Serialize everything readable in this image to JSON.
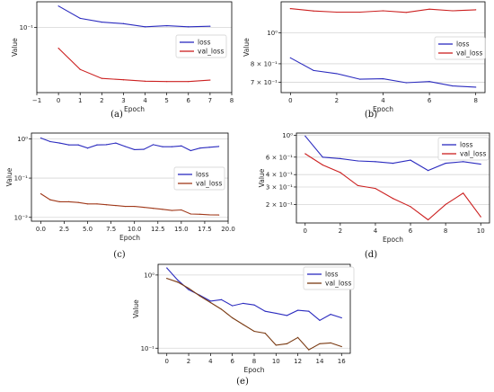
{
  "chart_data": [
    {
      "type": "line",
      "caption": "(a)",
      "xlabel": "Epoch",
      "ylabel": "Value",
      "yscale": "log",
      "grid": "y-major",
      "legend_position": "right",
      "xlim": [
        -1,
        8
      ],
      "ylim": [
        0.03,
        0.16
      ],
      "xticks": [
        {
          "v": -1,
          "t": "−1"
        },
        {
          "v": 0,
          "t": "0"
        },
        {
          "v": 1,
          "t": "1"
        },
        {
          "v": 2,
          "t": "2"
        },
        {
          "v": 3,
          "t": "3"
        },
        {
          "v": 4,
          "t": "4"
        },
        {
          "v": 5,
          "t": "5"
        },
        {
          "v": 6,
          "t": "6"
        },
        {
          "v": 7,
          "t": "7"
        },
        {
          "v": 8,
          "t": "8"
        }
      ],
      "yticks": [
        {
          "v": 0.1,
          "t": "10⁻¹"
        }
      ],
      "x": [
        0,
        1,
        2,
        3,
        4,
        5,
        6,
        7
      ],
      "series": [
        {
          "name": "loss",
          "color": "#2b2bbf",
          "values": [
            0.148,
            0.118,
            0.11,
            0.107,
            0.101,
            0.103,
            0.101,
            0.102
          ]
        },
        {
          "name": "val_loss",
          "color": "#cc2020",
          "values": [
            0.068,
            0.046,
            0.039,
            0.038,
            0.037,
            0.0368,
            0.0368,
            0.0378
          ]
        }
      ]
    },
    {
      "type": "line",
      "caption": "(b)",
      "xlabel": "Epoch",
      "ylabel": "Value",
      "yscale": "log",
      "grid": "y-major",
      "legend_position": "right",
      "xlim": [
        -0.4,
        8.4
      ],
      "ylim": [
        0.65,
        1.25
      ],
      "xticks": [
        {
          "v": 0,
          "t": "0"
        },
        {
          "v": 2,
          "t": "2"
        },
        {
          "v": 4,
          "t": "4"
        },
        {
          "v": 6,
          "t": "6"
        },
        {
          "v": 8,
          "t": "8"
        }
      ],
      "yticks": [
        {
          "v": 1.0,
          "t": "10⁰"
        },
        {
          "v": 0.8,
          "t": "8 × 10⁻¹"
        },
        {
          "v": 0.7,
          "t": "7 × 10⁻¹"
        }
      ],
      "x": [
        0,
        1,
        2,
        3,
        4,
        5,
        6,
        7,
        8
      ],
      "series": [
        {
          "name": "loss",
          "color": "#2b2bbf",
          "values": [
            0.835,
            0.762,
            0.745,
            0.716,
            0.718,
            0.698,
            0.704,
            0.682,
            0.676
          ]
        },
        {
          "name": "val_loss",
          "color": "#cc2020",
          "values": [
            1.19,
            1.17,
            1.16,
            1.16,
            1.172,
            1.158,
            1.185,
            1.172,
            1.18
          ]
        }
      ]
    },
    {
      "type": "line",
      "caption": "(c)",
      "xlabel": "Epoch",
      "ylabel": "Value",
      "yscale": "log",
      "grid": "y-major",
      "legend_position": "right",
      "xlim": [
        -1,
        20
      ],
      "ylim": [
        0.008,
        1.4
      ],
      "xticks": [
        {
          "v": 0,
          "t": "0.0"
        },
        {
          "v": 2.5,
          "t": "2.5"
        },
        {
          "v": 5,
          "t": "5.0"
        },
        {
          "v": 7.5,
          "t": "7.5"
        },
        {
          "v": 10,
          "t": "10.0"
        },
        {
          "v": 12.5,
          "t": "12.5"
        },
        {
          "v": 15,
          "t": "15.0"
        },
        {
          "v": 17.5,
          "t": "17.5"
        },
        {
          "v": 20,
          "t": "20.0"
        }
      ],
      "yticks": [
        {
          "v": 1,
          "t": "10⁰"
        },
        {
          "v": 0.1,
          "t": "10⁻¹"
        },
        {
          "v": 0.01,
          "t": "10⁻²"
        }
      ],
      "x": [
        0,
        1,
        2,
        3,
        4,
        5,
        6,
        7,
        8,
        9,
        10,
        11,
        12,
        13,
        14,
        15,
        16,
        17,
        18,
        19
      ],
      "series": [
        {
          "name": "loss",
          "color": "#2b2bbf",
          "values": [
            1.05,
            0.85,
            0.78,
            0.7,
            0.7,
            0.58,
            0.7,
            0.71,
            0.78,
            0.64,
            0.53,
            0.54,
            0.71,
            0.63,
            0.63,
            0.66,
            0.5,
            0.58,
            0.61,
            0.64
          ]
        },
        {
          "name": "val_loss",
          "color": "#a0391a",
          "values": [
            0.04,
            0.028,
            0.025,
            0.025,
            0.024,
            0.022,
            0.022,
            0.021,
            0.02,
            0.019,
            0.019,
            0.018,
            0.017,
            0.016,
            0.015,
            0.0155,
            0.0122,
            0.012,
            0.0116,
            0.0115
          ]
        }
      ]
    },
    {
      "type": "line",
      "caption": "(d)",
      "xlabel": "Epoch",
      "ylabel": "Value",
      "yscale": "log",
      "grid": "y-major",
      "legend_position": "top-right",
      "xlim": [
        -0.5,
        10.5
      ],
      "ylim": [
        0.13,
        1.05
      ],
      "xticks": [
        {
          "v": 0,
          "t": "0"
        },
        {
          "v": 2,
          "t": "2"
        },
        {
          "v": 4,
          "t": "4"
        },
        {
          "v": 6,
          "t": "6"
        },
        {
          "v": 8,
          "t": "8"
        },
        {
          "v": 10,
          "t": "10"
        }
      ],
      "yticks": [
        {
          "v": 1.0,
          "t": "10⁰"
        },
        {
          "v": 0.6,
          "t": "6 × 10⁻¹"
        },
        {
          "v": 0.4,
          "t": "4 × 10⁻¹"
        },
        {
          "v": 0.3,
          "t": "3 × 10⁻¹"
        },
        {
          "v": 0.2,
          "t": "2 × 10⁻¹"
        }
      ],
      "x": [
        0,
        1,
        2,
        3,
        4,
        5,
        6,
        7,
        8,
        9,
        10
      ],
      "series": [
        {
          "name": "loss",
          "color": "#2b2bbf",
          "values": [
            0.98,
            0.6,
            0.58,
            0.55,
            0.54,
            0.52,
            0.56,
            0.44,
            0.52,
            0.54,
            0.51
          ]
        },
        {
          "name": "val_loss",
          "color": "#cc2020",
          "values": [
            0.65,
            0.5,
            0.42,
            0.31,
            0.29,
            0.23,
            0.19,
            0.14,
            0.2,
            0.26,
            0.15
          ]
        }
      ]
    },
    {
      "type": "line",
      "caption": "(e)",
      "xlabel": "Epoch",
      "ylabel": "Value",
      "yscale": "log",
      "grid": "y-major",
      "legend_position": "top-right",
      "xlim": [
        -0.8,
        16.8
      ],
      "ylim": [
        0.085,
        1.4
      ],
      "xticks": [
        {
          "v": 0,
          "t": "0"
        },
        {
          "v": 2,
          "t": "2"
        },
        {
          "v": 4,
          "t": "4"
        },
        {
          "v": 6,
          "t": "6"
        },
        {
          "v": 8,
          "t": "8"
        },
        {
          "v": 10,
          "t": "10"
        },
        {
          "v": 12,
          "t": "12"
        },
        {
          "v": 14,
          "t": "14"
        },
        {
          "v": 16,
          "t": "16"
        }
      ],
      "yticks": [
        {
          "v": 1,
          "t": "10⁰"
        },
        {
          "v": 0.1,
          "t": "10⁻¹"
        }
      ],
      "x": [
        0,
        1,
        2,
        3,
        4,
        5,
        6,
        7,
        8,
        9,
        10,
        11,
        12,
        13,
        14,
        15,
        16
      ],
      "series": [
        {
          "name": "loss",
          "color": "#2b2bbf",
          "values": [
            1.25,
            0.85,
            0.63,
            0.53,
            0.44,
            0.46,
            0.38,
            0.41,
            0.39,
            0.32,
            0.3,
            0.28,
            0.33,
            0.32,
            0.24,
            0.29,
            0.26
          ]
        },
        {
          "name": "val_loss",
          "color": "#7a3a12",
          "values": [
            0.9,
            0.8,
            0.66,
            0.52,
            0.42,
            0.34,
            0.26,
            0.21,
            0.17,
            0.16,
            0.11,
            0.115,
            0.14,
            0.095,
            0.115,
            0.118,
            0.105
          ]
        }
      ]
    }
  ]
}
